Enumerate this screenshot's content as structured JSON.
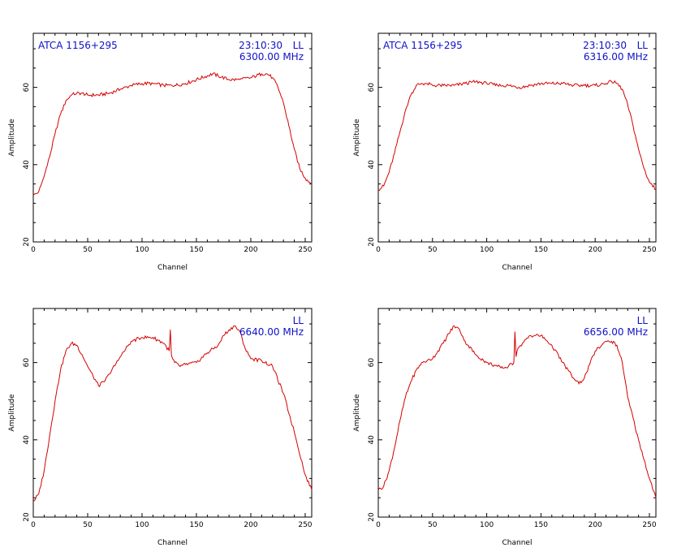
{
  "chart_data": [
    {
      "type": "line",
      "source": "ATCA 1156+295",
      "time": "23:10:30",
      "polarization": "LL",
      "frequency": "6300.00 MHz",
      "xlabel": "Channel",
      "ylabel": "Amplitude",
      "xlim": [
        0,
        256
      ],
      "ylim": [
        20,
        74
      ],
      "xticks": [
        0,
        50,
        100,
        150,
        200,
        250
      ],
      "yticks": [
        20,
        40,
        60
      ],
      "x": [
        0,
        5,
        10,
        15,
        20,
        25,
        30,
        35,
        40,
        45,
        50,
        60,
        70,
        80,
        90,
        100,
        110,
        120,
        130,
        140,
        150,
        160,
        165,
        170,
        180,
        190,
        200,
        210,
        215,
        220,
        225,
        230,
        235,
        240,
        245,
        250,
        256
      ],
      "values": [
        32,
        33,
        37,
        42,
        48,
        53,
        56.5,
        58,
        58.5,
        58.5,
        58,
        58,
        58.5,
        59.5,
        60.5,
        61,
        61,
        60.5,
        60.5,
        61,
        62,
        63,
        63.5,
        63,
        62,
        62,
        62.5,
        63.5,
        63.5,
        62.5,
        60,
        56,
        50,
        44,
        39,
        36.5,
        35
      ]
    },
    {
      "type": "line",
      "source": "ATCA 1156+295",
      "time": "23:10:30",
      "polarization": "LL",
      "frequency": "6316.00 MHz",
      "xlabel": "Channel",
      "ylabel": "Amplitude",
      "xlim": [
        0,
        256
      ],
      "ylim": [
        20,
        74
      ],
      "xticks": [
        0,
        50,
        100,
        150,
        200,
        250
      ],
      "yticks": [
        20,
        40,
        60
      ],
      "x": [
        0,
        5,
        10,
        15,
        20,
        25,
        30,
        35,
        40,
        45,
        50,
        60,
        70,
        80,
        90,
        100,
        110,
        120,
        130,
        140,
        150,
        160,
        170,
        180,
        190,
        200,
        210,
        215,
        220,
        225,
        230,
        235,
        240,
        245,
        250,
        256
      ],
      "values": [
        33.5,
        34.5,
        38,
        43,
        48.5,
        54,
        58,
        60.5,
        61,
        61,
        60.5,
        60.5,
        60.5,
        61,
        61.5,
        61,
        60.5,
        60.5,
        60,
        60.5,
        61,
        61,
        61,
        60.5,
        60.5,
        60.5,
        61,
        61.5,
        61,
        59.5,
        55.5,
        50,
        44,
        39,
        35.5,
        33.5
      ]
    },
    {
      "type": "line",
      "polarization": "LL",
      "frequency": "6640.00 MHz",
      "xlabel": "Channel",
      "ylabel": "Amplitude",
      "xlim": [
        0,
        256
      ],
      "ylim": [
        20,
        74
      ],
      "xticks": [
        0,
        50,
        100,
        150,
        200,
        250
      ],
      "yticks": [
        20,
        40,
        60
      ],
      "x": [
        0,
        5,
        10,
        15,
        20,
        25,
        30,
        35,
        40,
        45,
        50,
        55,
        60,
        65,
        70,
        80,
        90,
        100,
        110,
        120,
        125,
        126,
        127,
        128,
        130,
        135,
        140,
        150,
        160,
        170,
        175,
        180,
        185,
        190,
        195,
        200,
        210,
        220,
        230,
        240,
        250,
        256
      ],
      "values": [
        24,
        26,
        32,
        41,
        50,
        58,
        63,
        65,
        64.5,
        62,
        59,
        56.5,
        54,
        55,
        57,
        61.5,
        65.5,
        66.5,
        66.5,
        65,
        63,
        68.5,
        62,
        61,
        60,
        59,
        59.5,
        60,
        62.5,
        64.5,
        67,
        68.5,
        69.5,
        68,
        63.5,
        61,
        60.5,
        59,
        52,
        42,
        31,
        27
      ]
    },
    {
      "type": "line",
      "polarization": "LL",
      "frequency": "6656.00 MHz",
      "xlabel": "Channel",
      "ylabel": "Amplitude",
      "xlim": [
        0,
        256
      ],
      "ylim": [
        20,
        74
      ],
      "xticks": [
        0,
        50,
        100,
        150,
        200,
        250
      ],
      "yticks": [
        20,
        40,
        60
      ],
      "x": [
        0,
        5,
        10,
        15,
        20,
        25,
        30,
        35,
        40,
        45,
        50,
        55,
        60,
        65,
        70,
        75,
        80,
        90,
        100,
        110,
        115,
        120,
        125,
        126,
        127,
        128,
        130,
        140,
        150,
        160,
        170,
        180,
        185,
        190,
        195,
        200,
        210,
        215,
        220,
        225,
        230,
        240,
        250,
        256
      ],
      "values": [
        27,
        28,
        32,
        38,
        45,
        51,
        55,
        58,
        60,
        60.5,
        61,
        63,
        65,
        67.5,
        69.5,
        68.5,
        65.5,
        62,
        60,
        59,
        58.5,
        59,
        60,
        68,
        61.5,
        63,
        64,
        67,
        67,
        64.5,
        60,
        56,
        54.5,
        56,
        59.5,
        63,
        65.5,
        65.5,
        64.5,
        60,
        51,
        40,
        30,
        25
      ]
    }
  ]
}
